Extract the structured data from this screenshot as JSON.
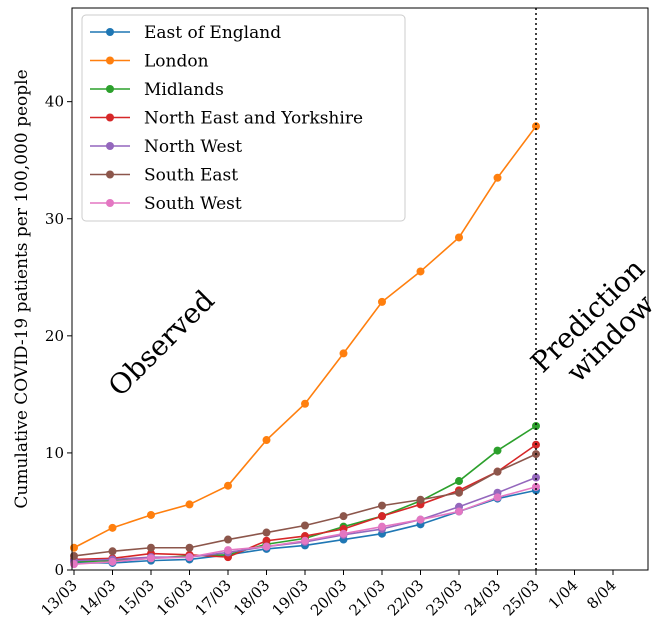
{
  "chart_data": {
    "type": "line",
    "title": "",
    "xlabel": "",
    "ylabel": "Cumulative COVID-19 patients per 100,000 people",
    "x_ticks": [
      "13/03",
      "14/03",
      "15/03",
      "16/03",
      "17/03",
      "18/03",
      "19/03",
      "20/03",
      "21/03",
      "22/03",
      "23/03",
      "24/03",
      "25/03",
      "1/04",
      "8/04"
    ],
    "ylim": [
      0,
      48
    ],
    "y_ticks": [
      0,
      10,
      20,
      30,
      40
    ],
    "grid": false,
    "legend_position": "top-left",
    "prediction_line_at": "25/03",
    "annotations": [
      {
        "text": "Observed"
      },
      {
        "text": "Prediction\nwindow"
      }
    ],
    "categories": [
      "13/03",
      "14/03",
      "15/03",
      "16/03",
      "17/03",
      "18/03",
      "19/03",
      "20/03",
      "21/03",
      "22/03",
      "23/03",
      "24/03",
      "25/03"
    ],
    "series": [
      {
        "name": "East of England",
        "color": "#1f77b4",
        "values": [
          0.6,
          0.6,
          0.8,
          0.9,
          1.3,
          1.8,
          2.1,
          2.6,
          3.1,
          3.9,
          5.0,
          6.1,
          6.8
        ]
      },
      {
        "name": "London",
        "color": "#ff7f0e",
        "values": [
          1.9,
          3.6,
          4.7,
          5.6,
          7.2,
          11.1,
          14.2,
          18.5,
          22.9,
          25.5,
          28.4,
          33.5,
          37.9
        ]
      },
      {
        "name": "Midlands",
        "color": "#2ca02c",
        "values": [
          0.7,
          0.8,
          1.0,
          1.2,
          1.3,
          2.2,
          2.7,
          3.7,
          4.6,
          5.9,
          7.6,
          10.2,
          12.3
        ]
      },
      {
        "name": "North East and Yorkshire",
        "color": "#d62728",
        "values": [
          0.9,
          1.0,
          1.4,
          1.3,
          1.1,
          2.5,
          2.9,
          3.5,
          4.6,
          5.6,
          6.8,
          8.4,
          10.7
        ]
      },
      {
        "name": "North West",
        "color": "#9467bd",
        "values": [
          0.8,
          0.9,
          1.1,
          1.1,
          1.5,
          2.0,
          2.4,
          3.0,
          3.5,
          4.3,
          5.4,
          6.6,
          7.9
        ]
      },
      {
        "name": "South East",
        "color": "#8c564b",
        "values": [
          1.2,
          1.6,
          1.9,
          1.9,
          2.6,
          3.2,
          3.8,
          4.6,
          5.5,
          6.0,
          6.6,
          8.4,
          9.9
        ]
      },
      {
        "name": "South West",
        "color": "#e377c2",
        "values": [
          0.5,
          0.7,
          1.0,
          1.1,
          1.7,
          2.0,
          2.5,
          3.1,
          3.7,
          4.3,
          5.0,
          6.2,
          7.1
        ]
      }
    ]
  }
}
